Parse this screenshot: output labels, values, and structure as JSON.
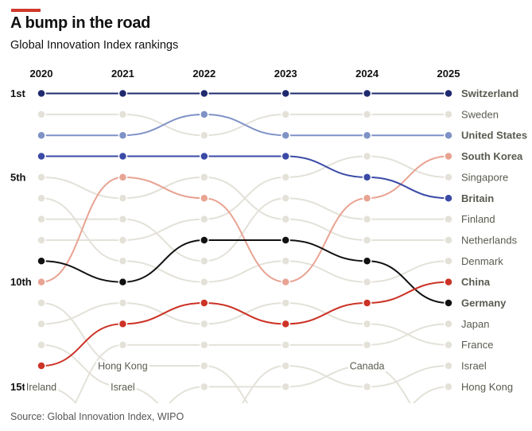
{
  "header": {
    "title": "A bump in the road",
    "subtitle": "Global Innovation Index rankings",
    "accent_color": "#d03a2c"
  },
  "footer": {
    "source": "Source: Global Innovation Index, WIPO"
  },
  "chart_data": {
    "type": "bump",
    "title": "A bump in the road",
    "subtitle": "Global Innovation Index rankings",
    "years": [
      "2020",
      "2021",
      "2022",
      "2023",
      "2024",
      "2025"
    ],
    "rank_labels": [
      {
        "rank": 1,
        "label": "1st"
      },
      {
        "rank": 5,
        "label": "5th"
      },
      {
        "rank": 10,
        "label": "10th"
      },
      {
        "rank": 15,
        "label": "15th"
      }
    ],
    "max_rank_shown": 15,
    "series": [
      {
        "name": "Sweden",
        "highlight": false,
        "color": "#e3e1d8",
        "ranks": [
          2,
          2,
          3,
          2,
          2,
          2
        ]
      },
      {
        "name": "Netherlands",
        "highlight": false,
        "color": "#e3e1d8",
        "ranks": [
          5,
          6,
          5,
          7,
          8,
          8
        ]
      },
      {
        "name": "Denmark",
        "highlight": false,
        "color": "#e3e1d8",
        "ranks": [
          6,
          9,
          10,
          9,
          10,
          9
        ]
      },
      {
        "name": "Finland",
        "highlight": false,
        "color": "#e3e1d8",
        "ranks": [
          7,
          7,
          9,
          6,
          7,
          7
        ]
      },
      {
        "name": "Singapore",
        "highlight": false,
        "color": "#e3e1d8",
        "ranks": [
          8,
          8,
          7,
          5,
          4,
          5
        ]
      },
      {
        "name": "Hong Kong",
        "highlight": false,
        "color": "#e3e1d8",
        "ranks": [
          11,
          14,
          14,
          null,
          null,
          15
        ],
        "inline_label_index": 1
      },
      {
        "name": "France",
        "highlight": false,
        "color": "#e3e1d8",
        "ranks": [
          12,
          11,
          12,
          11,
          12,
          13
        ]
      },
      {
        "name": "Israel",
        "highlight": false,
        "color": "#e3e1d8",
        "ranks": [
          13,
          15,
          null,
          14,
          15,
          14
        ],
        "inline_label_index": 1
      },
      {
        "name": "Ireland",
        "highlight": false,
        "color": "#e3e1d8",
        "ranks": [
          15,
          null,
          null,
          null,
          null,
          null
        ],
        "inline_label_index": 0
      },
      {
        "name": "Japan",
        "highlight": false,
        "color": "#e3e1d8",
        "ranks": [
          null,
          13,
          13,
          13,
          13,
          12
        ]
      },
      {
        "name": "Canada",
        "highlight": false,
        "color": "#e3e1d8",
        "ranks": [
          null,
          null,
          15,
          15,
          14,
          null
        ],
        "inline_label_index": 4
      },
      {
        "name": "South Korea",
        "highlight": true,
        "color": "#e8a392",
        "label_color": "#d6453a",
        "ranks": [
          10,
          5,
          6,
          10,
          6,
          4
        ]
      },
      {
        "name": "Germany",
        "highlight": true,
        "color": "#111111",
        "label_color": "#111111",
        "ranks": [
          9,
          10,
          8,
          8,
          9,
          11
        ]
      },
      {
        "name": "China",
        "highlight": true,
        "color": "#cc3326",
        "label_color": "#cc3326",
        "ranks": [
          14,
          12,
          11,
          12,
          11,
          10
        ]
      },
      {
        "name": "Britain",
        "highlight": true,
        "color": "#3a4aa6",
        "label_color": "#3a4aa6",
        "ranks": [
          4,
          4,
          4,
          4,
          5,
          6
        ]
      },
      {
        "name": "United States",
        "highlight": true,
        "color": "#7e92c6",
        "label_color": "#3a4aa6",
        "ranks": [
          3,
          3,
          2,
          3,
          3,
          3
        ]
      },
      {
        "name": "Switzerland",
        "highlight": true,
        "color": "#1f2a6e",
        "label_color": "#1f2a6e",
        "ranks": [
          1,
          1,
          1,
          1,
          1,
          1
        ]
      }
    ],
    "end_labels": [
      {
        "rank": 1,
        "name": "Switzerland"
      },
      {
        "rank": 2,
        "name": "Sweden"
      },
      {
        "rank": 3,
        "name": "United States"
      },
      {
        "rank": 4,
        "name": "South Korea"
      },
      {
        "rank": 5,
        "name": "Singapore"
      },
      {
        "rank": 6,
        "name": "Britain"
      },
      {
        "rank": 7,
        "name": "Finland"
      },
      {
        "rank": 8,
        "name": "Netherlands"
      },
      {
        "rank": 9,
        "name": "Denmark"
      },
      {
        "rank": 10,
        "name": "China"
      },
      {
        "rank": 11,
        "name": "Germany"
      },
      {
        "rank": 12,
        "name": "Japan"
      },
      {
        "rank": 13,
        "name": "France"
      },
      {
        "rank": 14,
        "name": "Israel"
      },
      {
        "rank": 15,
        "name": "Hong Kong"
      }
    ],
    "grid": false,
    "legend": "direct-labels-right"
  }
}
